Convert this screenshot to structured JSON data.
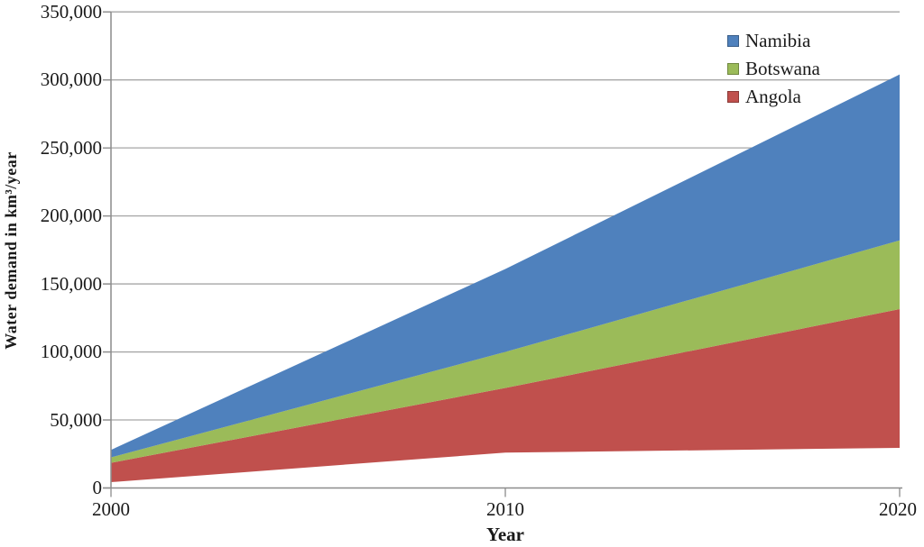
{
  "page": {
    "background": "#ffffff"
  },
  "chart_data": {
    "type": "area",
    "stacked": true,
    "title": "",
    "xlabel": "Year",
    "ylabel": "Water demand in km³/year",
    "x": [
      2000,
      2010,
      2020
    ],
    "x_tick_labels": [
      "2000",
      "2010",
      "2020"
    ],
    "y_tick_labels": [
      "0",
      "50,000",
      "100,000",
      "150,000",
      "200,000",
      "250,000",
      "300,000",
      "350,000"
    ],
    "ylim": [
      0,
      350000
    ],
    "y_tick_step": 50000,
    "xlim": [
      2000,
      2020
    ],
    "grid": "horizontal-behind-areas",
    "baseline_hidden_series": {
      "note": "white wedge under lowest band (unfilled bottom series)",
      "values": [
        4300,
        26000,
        29500
      ]
    },
    "series": [
      {
        "name": "Angola",
        "color": "#C0504D",
        "values": [
          14200,
          47500,
          102000
        ],
        "cumulative_top": [
          18500,
          73500,
          131500
        ]
      },
      {
        "name": "Botswana",
        "color": "#9BBB59",
        "values": [
          4000,
          26500,
          50500
        ],
        "cumulative_top": [
          22500,
          100000,
          182000
        ]
      },
      {
        "name": "Namibia",
        "color": "#4F81BD",
        "values": [
          5500,
          61000,
          122000
        ],
        "cumulative_top": [
          28000,
          161000,
          304000
        ]
      }
    ],
    "legend": {
      "position": "top-right-inside",
      "entries": [
        {
          "label": "Namibia",
          "color": "#4F81BD"
        },
        {
          "label": "Botswana",
          "color": "#9BBB59"
        },
        {
          "label": "Angola",
          "color": "#C0504D"
        }
      ]
    },
    "colors": {
      "axis": "#8c8c8c",
      "gridline": "#a6a6a6",
      "text": "#1a1a1a"
    }
  }
}
